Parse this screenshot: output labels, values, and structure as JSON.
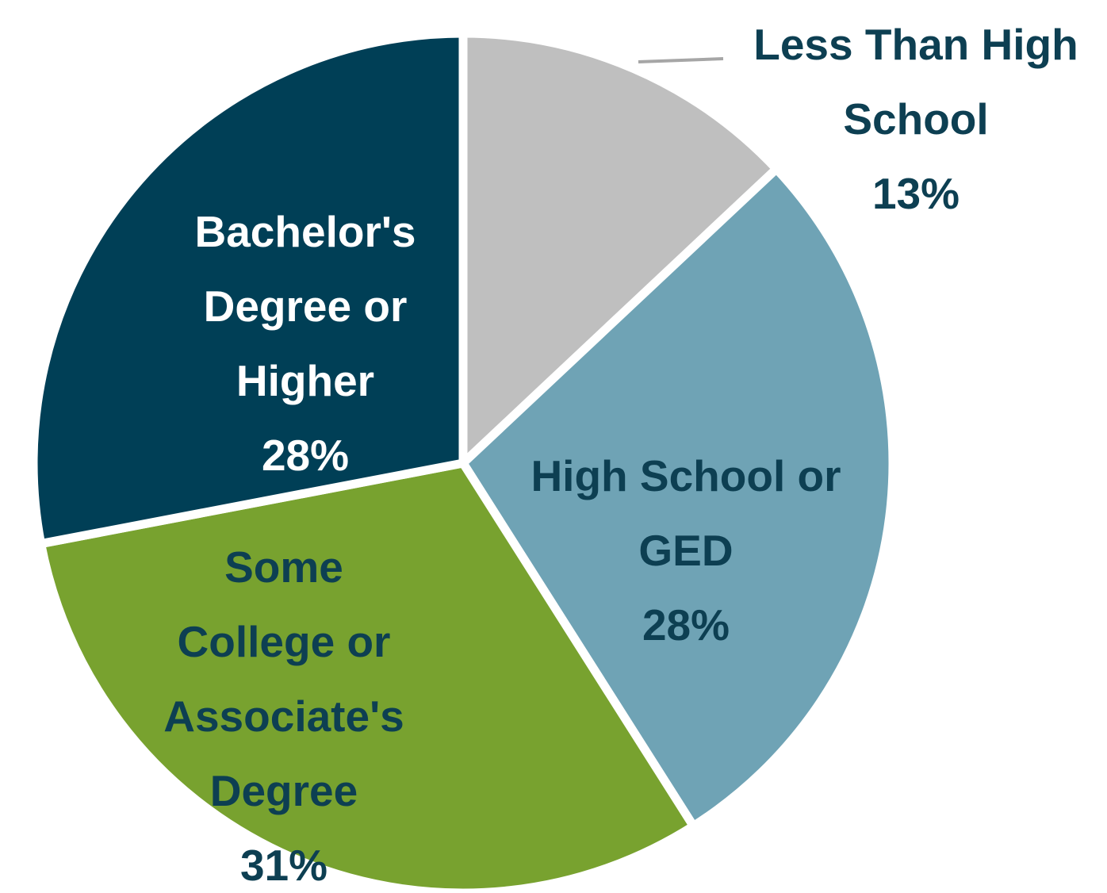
{
  "chart_data": {
    "type": "pie",
    "categories": [
      "Less Than High School",
      "High School or GED",
      "Some College or Associate's Degree",
      "Bachelor's Degree or Higher"
    ],
    "values": [
      13,
      28,
      31,
      28
    ],
    "value_labels": [
      "13%",
      "28%",
      "31%",
      "28%"
    ],
    "colors": [
      "#bfbfbf",
      "#6fa3b5",
      "#78a22f",
      "#003f56"
    ],
    "label_colors": [
      "#0d3f52",
      "#0d3f52",
      "#0d3f52",
      "#ffffff"
    ]
  }
}
